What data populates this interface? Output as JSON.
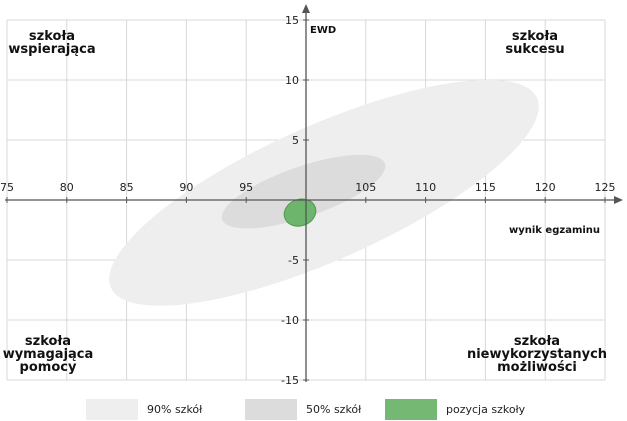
{
  "chart_data": {
    "type": "scatter",
    "xlabel": "wynik egzaminu",
    "ylabel": "EWD",
    "xlim": [
      75,
      125
    ],
    "ylim": [
      -15,
      15
    ],
    "x_ticks": [
      75,
      80,
      85,
      90,
      95,
      105,
      110,
      115,
      120,
      125
    ],
    "y_ticks": [
      15,
      10,
      5,
      -5,
      -10,
      -15
    ],
    "grid": true,
    "regions": [
      {
        "name": "90% szkół",
        "color": "#eeeeee",
        "center": [
          101.5,
          0.6
        ],
        "rx": 19.5,
        "ry": 5.6,
        "angle_deg": -24
      },
      {
        "name": "50% szkół",
        "color": "#dcdcdc",
        "center": [
          99.8,
          0.7
        ],
        "rx": 7.2,
        "ry": 2.1,
        "angle_deg": -19
      },
      {
        "name": "pozycja szkoły",
        "color": "#6db56d",
        "stroke": "#4e9a4e",
        "center": [
          99.5,
          -1.05
        ],
        "rx": 1.35,
        "ry": 1.1,
        "angle_deg": -20
      }
    ],
    "quadrants": {
      "top_left": [
        "szkoła",
        "wspierająca"
      ],
      "top_right": [
        "szkoła",
        "sukcesu"
      ],
      "bottom_left": [
        "szkoła",
        "wymagająca",
        "pomocy"
      ],
      "bottom_right": [
        "szkoła",
        "niewykorzystanych",
        "możliwości"
      ]
    },
    "legend": [
      {
        "label": "90% szkół",
        "color": "#eeeeee"
      },
      {
        "label": "50% szkół",
        "color": "#dcdcdc"
      },
      {
        "label": "pozycja szkoły",
        "color": "#74b874"
      }
    ],
    "legend_position": "bottom"
  }
}
